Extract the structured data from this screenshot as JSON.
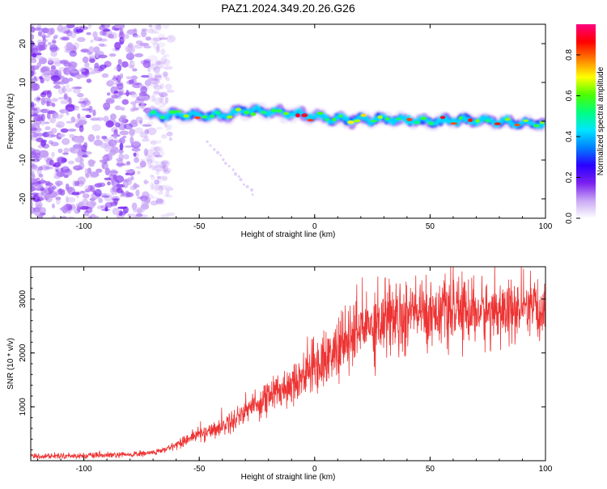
{
  "chart_data": [
    {
      "type": "heatmap",
      "title": "PAZ1.2024.349.20.26.G26",
      "xlabel": "Height of straight line (km)",
      "ylabel": "Frequency (Hz)",
      "xlim": [
        -123,
        100
      ],
      "ylim": [
        -25,
        25
      ],
      "xticks": [
        -100,
        -50,
        0,
        50,
        100
      ],
      "yticks": [
        20,
        10,
        0,
        -10,
        -20
      ],
      "colorbar": {
        "label": "Normalized spectral amplitude",
        "range": [
          0.0,
          0.95
        ],
        "ticks": [
          0.0,
          0.2,
          0.4,
          0.6,
          0.8
        ],
        "colors": [
          "#ffffff",
          "#c9a8f5",
          "#7a1ff0",
          "#2a00ff",
          "#0080ff",
          "#00e6ff",
          "#00ff80",
          "#4cff00",
          "#ffff00",
          "#ff8000",
          "#ff0000",
          "#ff0080"
        ]
      },
      "ridge": {
        "x": [
          -72,
          -60,
          -50,
          -40,
          -30,
          -20,
          -10,
          0,
          10,
          20,
          30,
          40,
          50,
          60,
          70,
          80,
          90,
          100
        ],
        "y": [
          1.5,
          1.8,
          1.5,
          1.5,
          2.8,
          2.5,
          2.0,
          1.2,
          0.5,
          0.5,
          0.5,
          0.2,
          0.0,
          0.3,
          0.3,
          -0.2,
          -0.5,
          -0.8
        ]
      },
      "noise_region": {
        "x_start": -123,
        "x_end": -72
      }
    },
    {
      "type": "line",
      "title": "",
      "xlabel": "Height of straight line (km)",
      "ylabel": "SNR (10 * v/v)",
      "xlim": [
        -123,
        100
      ],
      "ylim": [
        0,
        3600
      ],
      "xticks": [
        -100,
        -50,
        0,
        50,
        100
      ],
      "yticks": [
        1000,
        2000,
        3000
      ],
      "series": [
        {
          "color": "#ee3333",
          "x": [
            -123,
            -110,
            -100,
            -90,
            -80,
            -70,
            -65,
            -60,
            -55,
            -50,
            -45,
            -40,
            -35,
            -30,
            -25,
            -20,
            -15,
            -10,
            -5,
            0,
            5,
            10,
            15,
            20,
            25,
            30,
            35,
            40,
            45,
            50,
            55,
            60,
            65,
            70,
            75,
            80,
            85,
            90,
            95,
            100
          ],
          "values": [
            80,
            90,
            90,
            100,
            110,
            150,
            200,
            300,
            400,
            500,
            550,
            650,
            750,
            950,
            1050,
            1200,
            1300,
            1450,
            1600,
            1750,
            1900,
            2050,
            2250,
            2450,
            2550,
            2650,
            2700,
            2750,
            2750,
            2750,
            2800,
            2750,
            2800,
            2750,
            2750,
            2800,
            2750,
            2800,
            2750,
            2800
          ]
        }
      ]
    }
  ]
}
